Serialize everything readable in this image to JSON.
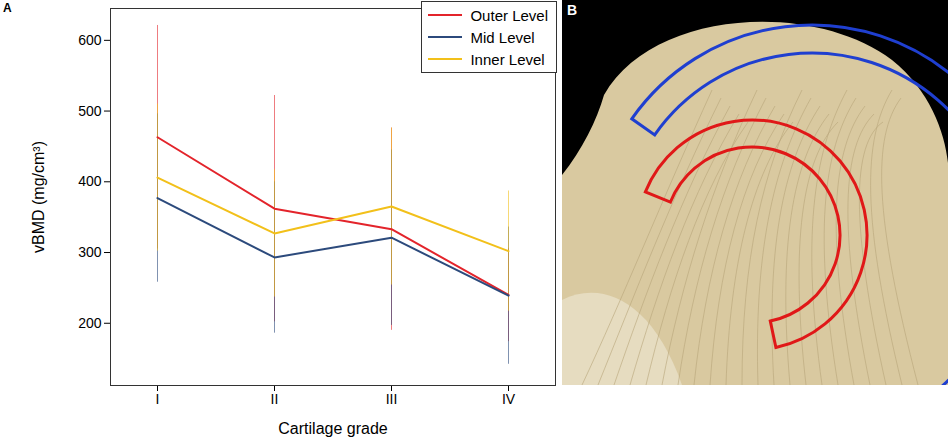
{
  "chart_data": {
    "type": "line",
    "panel_label": "A",
    "x_label": "Cartilage grade",
    "y_label": "vBMD (mg/cm³)",
    "categories": [
      "I",
      "II",
      "III",
      "IV"
    ],
    "series": [
      {
        "name": "Outer Level",
        "color": "#e3242b",
        "values": [
          463,
          362,
          333,
          240
        ],
        "error": [
          158,
          160,
          143,
          66
        ]
      },
      {
        "name": "Mid Level",
        "color": "#2c4a7c",
        "values": [
          377,
          293,
          321,
          239
        ],
        "error": [
          119,
          107,
          124,
          97
        ]
      },
      {
        "name": "Inner Level",
        "color": "#f2c01a",
        "values": [
          406,
          327,
          365,
          302
        ],
        "error": [
          104,
          90,
          111,
          85
        ]
      }
    ],
    "ylim": [
      112,
      645
    ],
    "yticks": [
      200,
      300,
      400,
      500,
      600
    ],
    "legend": "top-right",
    "grid": false
  },
  "image_panel": {
    "panel_label": "B"
  }
}
